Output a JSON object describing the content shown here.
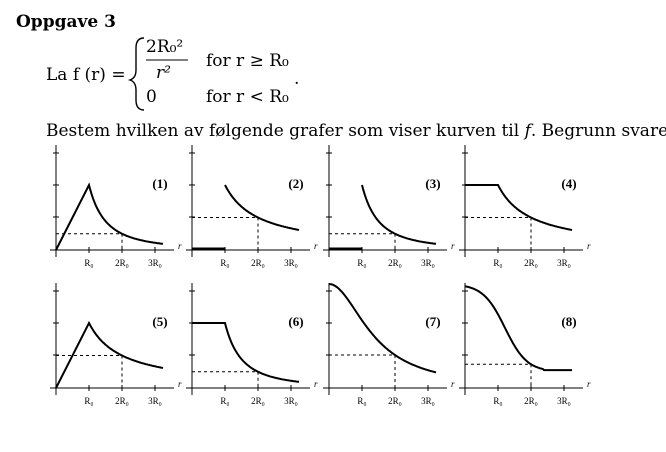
{
  "header": {
    "title": "Oppgave 3"
  },
  "formula": {
    "lhs": "La f (r) =",
    "case1_numerator": "2R₀²",
    "case1_denominator": "r²",
    "case1_condition": "for r ≥ R₀",
    "case2_value": "0",
    "case2_condition": "for r < R₀",
    "end": "."
  },
  "question": {
    "text_before": "Bestem hvilken av følgende grafer som viser kurven til ",
    "symbol": "f",
    "text_after": ". Begrunn svaret."
  },
  "graphs": [
    {
      "label": "(1)",
      "ticks": [
        "R₀",
        "2R₀",
        "3R₀"
      ],
      "axis": "r"
    },
    {
      "label": "(2)",
      "ticks": [
        "R₀",
        "2R₀",
        "3R₀"
      ],
      "axis": "r"
    },
    {
      "label": "(3)",
      "ticks": [
        "R₀",
        "2R₀",
        "3R₀"
      ],
      "axis": "r"
    },
    {
      "label": "(4)",
      "ticks": [
        "R₀",
        "2R₀",
        "3R₀"
      ],
      "axis": "r"
    },
    {
      "label": "(5)",
      "ticks": [
        "R₀",
        "2R₀",
        "3R₀"
      ],
      "axis": "r"
    },
    {
      "label": "(6)",
      "ticks": [
        "R₀",
        "2R₀",
        "3R₀"
      ],
      "axis": "r"
    },
    {
      "label": "(7)",
      "ticks": [
        "R₀",
        "2R₀",
        "3R₀"
      ],
      "axis": "r"
    },
    {
      "label": "(8)",
      "ticks": [
        "R₀",
        "2R₀",
        "3R₀"
      ],
      "axis": "r"
    }
  ]
}
